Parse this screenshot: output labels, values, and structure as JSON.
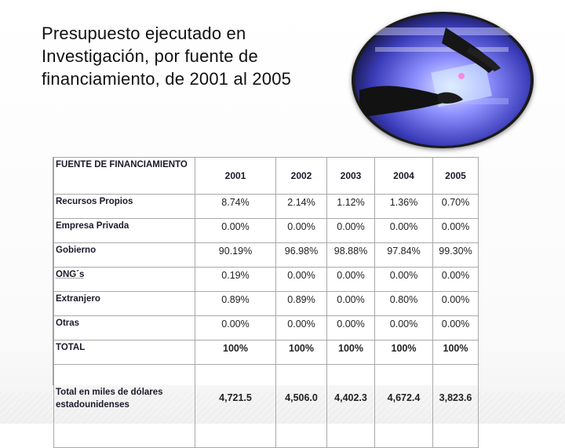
{
  "slide": {
    "title": "Presupuesto ejecutado en Investigación, por fuente de financiamiento, de 2001 al 2005"
  },
  "table": {
    "header_source": "FUENTE DE FINANCIAMIENTO",
    "years": [
      "2001",
      "2002",
      "2003",
      "2004",
      "2005"
    ],
    "rows": [
      {
        "label": "Recursos Propios",
        "values": [
          "8.74%",
          "2.14%",
          "1.12%",
          "1.36%",
          "0.70%"
        ]
      },
      {
        "label": "Empresa Privada",
        "values": [
          "0.00%",
          "0.00%",
          "0.00%",
          "0.00%",
          "0.00%"
        ]
      },
      {
        "label": "Gobierno",
        "values": [
          "90.19%",
          "96.98%",
          "98.88%",
          "97.84%",
          "99.30%"
        ]
      },
      {
        "label": "ONG´s",
        "values": [
          "0.19%",
          "0.00%",
          "0.00%",
          "0.00%",
          "0.00%"
        ]
      },
      {
        "label": "Extranjero",
        "values": [
          "0.89%",
          "0.89%",
          "0.00%",
          "0.80%",
          "0.00%"
        ]
      },
      {
        "label": "Otras",
        "values": [
          "0.00%",
          "0.00%",
          "0.00%",
          "0.00%",
          "0.00%"
        ]
      },
      {
        "label": "TOTAL",
        "values": [
          "100%",
          "100%",
          "100%",
          "100%",
          "100%"
        ]
      },
      {
        "label": "Total en miles de dólares estadounidenses",
        "values": [
          "4,721.5",
          "4,506.0",
          "4,402.3",
          "4,672.4",
          "3,823.6"
        ]
      }
    ]
  },
  "colors": {
    "text": "#111111",
    "grid": "#a9a9a9",
    "photo_glow": "#6a6cf0"
  },
  "icons": {
    "photo": "lab-gloves-photo"
  }
}
